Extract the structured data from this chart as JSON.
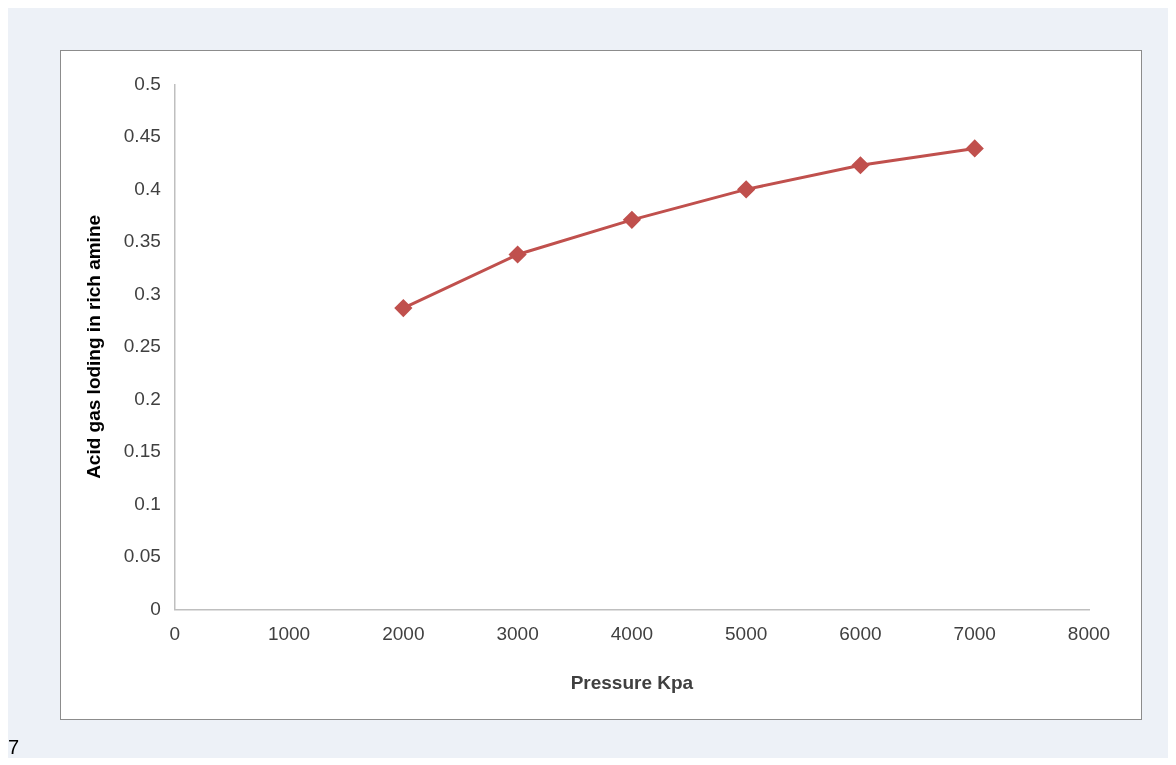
{
  "chart_data": {
    "type": "line",
    "xlabel": "Pressure Kpa",
    "ylabel": "Acid gas loding in rich amine",
    "x": [
      2000,
      3000,
      4000,
      5000,
      6000,
      7000
    ],
    "series": [
      {
        "color": "#c0504d",
        "values": [
          0.287,
          0.338,
          0.371,
          0.4,
          0.423,
          0.439
        ]
      }
    ],
    "xlim": [
      0,
      8000
    ],
    "xticks": [
      0,
      1000,
      2000,
      3000,
      4000,
      5000,
      6000,
      7000,
      8000
    ],
    "ylim": [
      0,
      0.5
    ],
    "yticks": [
      0,
      0.05,
      0.1,
      0.15,
      0.2,
      0.25,
      0.3,
      0.35,
      0.4,
      0.45,
      0.5
    ],
    "grid": false,
    "legend": false,
    "marker": "diamond",
    "line_style": "solid",
    "annotations": [
      "7"
    ]
  }
}
